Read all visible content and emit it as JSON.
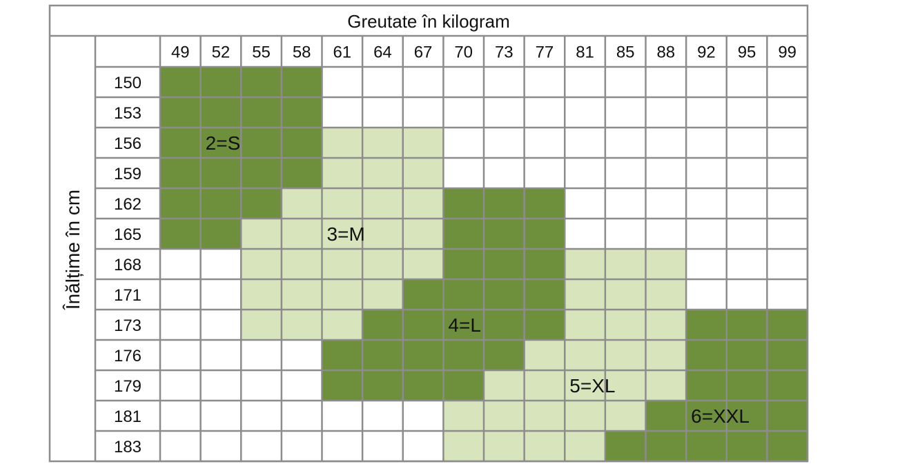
{
  "chart_data": {
    "type": "heatmap",
    "title": "Greutate în kilogram",
    "ylabel": "Înălțime în cm",
    "x": [
      "49",
      "52",
      "55",
      "58",
      "61",
      "64",
      "67",
      "70",
      "73",
      "77",
      "81",
      "85",
      "88",
      "92",
      "95",
      "99"
    ],
    "y": [
      "150",
      "153",
      "156",
      "159",
      "162",
      "165",
      "168",
      "171",
      "173",
      "176",
      "179",
      "181",
      "183"
    ],
    "colors": {
      "0": "#ffffff",
      "2": "#6e8f3b",
      "3": "#d8e4bc",
      "4": "#6e8f3b",
      "5": "#d8e4bc",
      "6": "#6e8f3b"
    },
    "grid_color": "#8c8c8c",
    "values": [
      [
        2,
        2,
        2,
        2,
        0,
        0,
        0,
        0,
        0,
        0,
        0,
        0,
        0,
        0,
        0,
        0
      ],
      [
        2,
        2,
        2,
        2,
        0,
        0,
        0,
        0,
        0,
        0,
        0,
        0,
        0,
        0,
        0,
        0
      ],
      [
        2,
        2,
        2,
        2,
        3,
        3,
        3,
        0,
        0,
        0,
        0,
        0,
        0,
        0,
        0,
        0
      ],
      [
        2,
        2,
        2,
        2,
        3,
        3,
        3,
        0,
        0,
        0,
        0,
        0,
        0,
        0,
        0,
        0
      ],
      [
        2,
        2,
        2,
        3,
        3,
        3,
        3,
        4,
        4,
        4,
        0,
        0,
        0,
        0,
        0,
        0
      ],
      [
        2,
        2,
        3,
        3,
        3,
        3,
        3,
        4,
        4,
        4,
        0,
        0,
        0,
        0,
        0,
        0
      ],
      [
        0,
        0,
        3,
        3,
        3,
        3,
        3,
        4,
        4,
        4,
        5,
        5,
        5,
        0,
        0,
        0
      ],
      [
        0,
        0,
        3,
        3,
        3,
        3,
        4,
        4,
        4,
        4,
        5,
        5,
        5,
        0,
        0,
        0
      ],
      [
        0,
        0,
        3,
        3,
        3,
        4,
        4,
        4,
        4,
        4,
        5,
        5,
        5,
        6,
        6,
        6
      ],
      [
        0,
        0,
        0,
        0,
        4,
        4,
        4,
        4,
        4,
        5,
        5,
        5,
        5,
        6,
        6,
        6
      ],
      [
        0,
        0,
        0,
        0,
        4,
        4,
        4,
        4,
        5,
        5,
        5,
        5,
        5,
        6,
        6,
        6
      ],
      [
        0,
        0,
        0,
        0,
        0,
        0,
        0,
        5,
        5,
        5,
        5,
        5,
        6,
        6,
        6,
        6
      ],
      [
        0,
        0,
        0,
        0,
        0,
        0,
        0,
        5,
        5,
        5,
        5,
        6,
        6,
        6,
        6,
        6
      ]
    ],
    "annotations": [
      {
        "text": "2=S",
        "row": 2,
        "col": 1
      },
      {
        "text": "3=M",
        "row": 5,
        "col": 4
      },
      {
        "text": "4=L",
        "row": 8,
        "col": 7
      },
      {
        "text": "5=XL",
        "row": 10,
        "col": 10
      },
      {
        "text": "6=XXL",
        "row": 11,
        "col": 13
      }
    ]
  }
}
